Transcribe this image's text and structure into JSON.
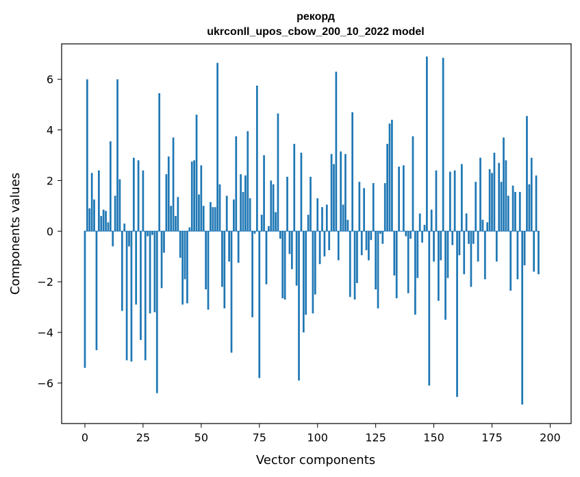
{
  "chart_data": {
    "type": "bar",
    "title_line1": "рекорд",
    "title_line2": "ukrconll_upos_cbow_200_10_2022 model",
    "xlabel": "Vector components",
    "ylabel": "Components values",
    "xlim": [
      -10,
      209
    ],
    "ylim": [
      -7.6,
      7.4
    ],
    "xticks": [
      0,
      25,
      50,
      75,
      100,
      125,
      150,
      175,
      200
    ],
    "yticks": [
      -6,
      -4,
      -2,
      0,
      2,
      4,
      6
    ],
    "ytick_labels": [
      "−6",
      "−4",
      "−2",
      "0",
      "2",
      "4",
      "6"
    ],
    "grid": false,
    "bar_color": "#1f77b4",
    "values": [
      -5.4,
      6.0,
      0.9,
      2.3,
      1.25,
      -4.7,
      2.4,
      0.6,
      0.85,
      0.8,
      0.35,
      3.55,
      -0.6,
      1.4,
      6.0,
      2.05,
      -3.15,
      0.3,
      -5.1,
      -0.6,
      -5.15,
      2.9,
      -2.9,
      2.8,
      -4.3,
      2.4,
      -5.1,
      -0.2,
      -3.25,
      -0.15,
      -3.2,
      -6.4,
      5.45,
      -2.25,
      -0.85,
      2.25,
      2.95,
      1.0,
      3.7,
      0.6,
      1.35,
      -1.05,
      -2.9,
      -1.9,
      -2.85,
      0.15,
      2.75,
      2.8,
      4.6,
      1.45,
      2.6,
      1.0,
      -2.3,
      -3.1,
      1.15,
      0.95,
      0.95,
      6.65,
      1.85,
      -2.2,
      -3.05,
      1.4,
      -1.2,
      -4.8,
      1.25,
      3.75,
      -1.25,
      2.25,
      1.55,
      2.2,
      3.95,
      1.3,
      -3.4,
      -0.1,
      5.75,
      -5.8,
      0.65,
      3.0,
      -2.1,
      0.2,
      2.0,
      1.85,
      0.75,
      4.65,
      -0.3,
      -2.65,
      -2.7,
      2.15,
      -0.9,
      -1.5,
      3.45,
      -2.15,
      -5.9,
      3.1,
      -4.0,
      -3.3,
      0.65,
      2.15,
      -3.25,
      -2.5,
      1.3,
      -1.3,
      0.95,
      -1.0,
      1.05,
      -0.75,
      3.05,
      2.65,
      6.3,
      -1.15,
      3.15,
      1.05,
      3.05,
      0.45,
      -2.6,
      4.7,
      -2.7,
      -2.05,
      1.95,
      -0.95,
      1.7,
      -0.75,
      -1.15,
      -0.35,
      1.9,
      -2.3,
      -3.05,
      -0.1,
      -0.5,
      1.9,
      3.45,
      4.25,
      4.4,
      -1.75,
      -2.65,
      2.55,
      0.0,
      2.6,
      -0.2,
      -2.45,
      -0.3,
      3.75,
      -3.3,
      -1.85,
      0.7,
      -0.45,
      0.25,
      6.9,
      -6.1,
      0.85,
      -1.2,
      2.4,
      -2.75,
      -1.15,
      6.85,
      -3.5,
      -1.85,
      2.35,
      -0.55,
      2.4,
      -6.55,
      -0.95,
      2.65,
      -1.7,
      0.7,
      -0.5,
      -2.2,
      -0.5,
      1.95,
      -1.2,
      2.9,
      0.45,
      -1.9,
      0.35,
      2.45,
      2.3,
      3.1,
      -1.2,
      2.7,
      1.95,
      3.7,
      2.8,
      1.4,
      -2.35,
      1.8,
      1.55,
      -1.9,
      1.55,
      -6.85,
      -1.35,
      4.55,
      1.85,
      2.9,
      -1.6,
      2.2,
      -1.7
    ]
  }
}
